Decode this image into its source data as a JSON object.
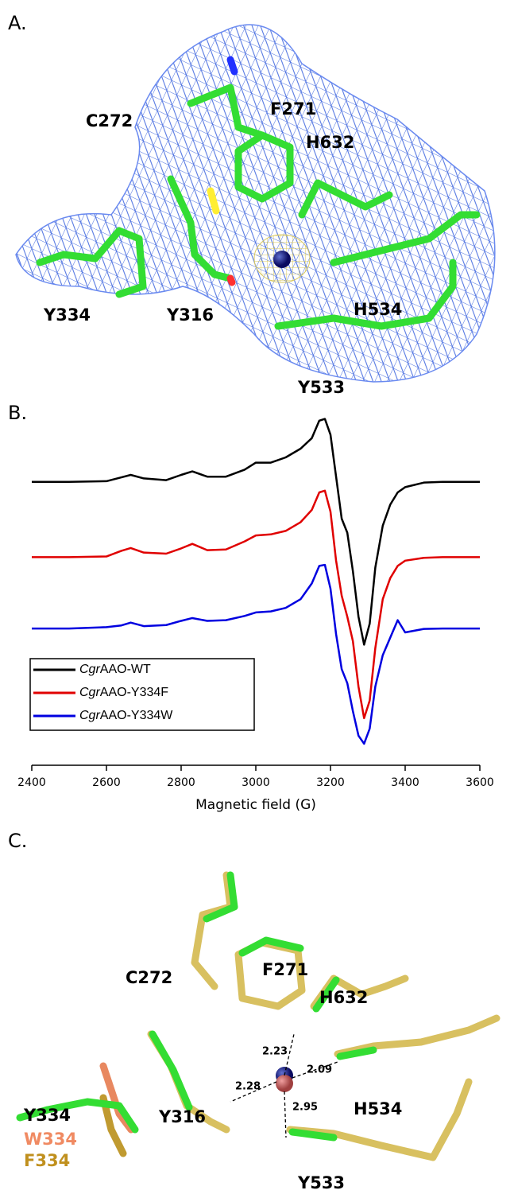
{
  "figure": {
    "panel_a": {
      "label": "A.",
      "residues": [
        "C272",
        "F271",
        "H632",
        "Y334",
        "Y316",
        "H534",
        "Y533"
      ]
    },
    "panel_b": {
      "label": "B."
    },
    "panel_c": {
      "label": "C.",
      "residues": [
        "C272",
        "F271",
        "H632",
        "Y334",
        "W334",
        "F334",
        "Y316",
        "H534",
        "Y533"
      ],
      "distances": [
        2.23,
        2.09,
        2.28,
        2.95
      ]
    }
  },
  "chart_data": {
    "type": "line",
    "x_label": "Magnetic field (G)",
    "x": [
      2400,
      2500,
      2600,
      2640,
      2665,
      2700,
      2760,
      2800,
      2830,
      2870,
      2920,
      2970,
      3000,
      3040,
      3080,
      3120,
      3150,
      3170,
      3185,
      3200,
      3215,
      3230,
      3245,
      3260,
      3275,
      3290,
      3305,
      3320,
      3340,
      3360,
      3380,
      3400,
      3450,
      3500,
      3600
    ],
    "series": [
      {
        "name": "CgrAAO-WT",
        "color": "#000000",
        "values": [
          80.5,
          80.5,
          80.7,
          81.8,
          82.5,
          81.5,
          81,
          82.5,
          83.5,
          82,
          82,
          84,
          86,
          86,
          87.5,
          90,
          93,
          98,
          98.5,
          94,
          82,
          70,
          66,
          55,
          42,
          34,
          40,
          56,
          68,
          74,
          77.5,
          79,
          80.3,
          80.5,
          80.5
        ]
      },
      {
        "name": "CgrAAO-Y334F",
        "color": "#e00000",
        "values": [
          59,
          59,
          59.2,
          60.8,
          61.6,
          60.3,
          60,
          61.5,
          62.8,
          61,
          61.2,
          63.5,
          65.2,
          65.5,
          66.5,
          69,
          72.5,
          77.5,
          78,
          72,
          58,
          48,
          42,
          35,
          22,
          13,
          18,
          33,
          47,
          53,
          56.5,
          58,
          58.8,
          59,
          59
        ]
      },
      {
        "name": "CgrAAO-Y334W",
        "color": "#0000e0",
        "values": [
          38.6,
          38.6,
          39,
          39.5,
          40.3,
          39.3,
          39.6,
          40.8,
          41.6,
          40.8,
          41,
          42.2,
          43.2,
          43.5,
          44.5,
          47,
          51.5,
          56.5,
          56.8,
          50,
          37,
          27,
          23,
          15,
          8,
          5.7,
          10,
          22,
          31,
          36,
          41,
          37.5,
          38.5,
          38.6,
          38.6
        ]
      }
    ],
    "xlim": [
      2400,
      3600
    ],
    "xticks": [
      2400,
      2600,
      2800,
      3000,
      3200,
      3400,
      3600
    ],
    "ylim": [
      0,
      100
    ],
    "legend": "lower-left"
  }
}
